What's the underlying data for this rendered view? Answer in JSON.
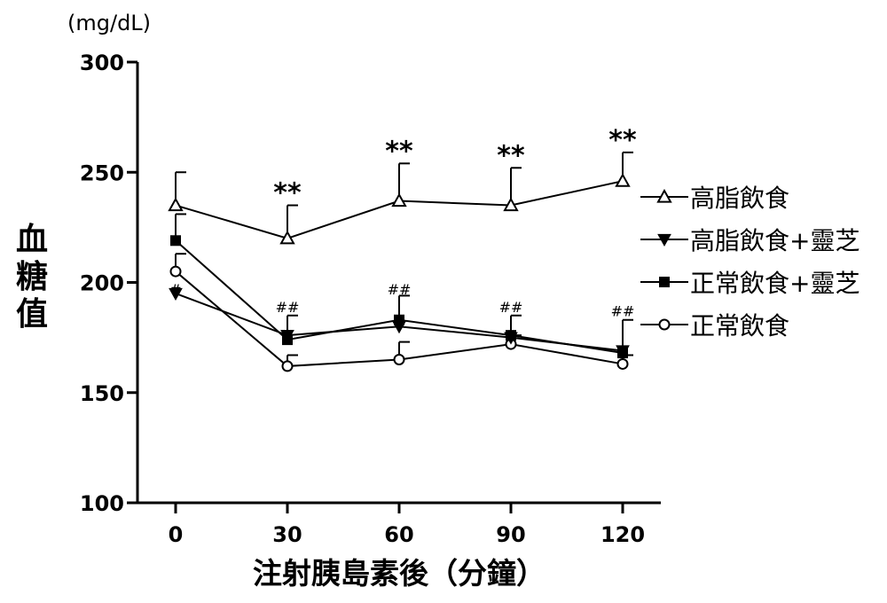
{
  "chart_data": {
    "type": "line",
    "unit": "(mg/dL)",
    "ylabel": "血糖值",
    "xlabel": "注射胰島素後（分鐘）",
    "x": [
      0,
      30,
      60,
      90,
      120
    ],
    "x_ticks": [
      "0",
      "30",
      "60",
      "90",
      "120"
    ],
    "ylim": [
      100,
      300
    ],
    "y_ticks": [
      "100",
      "150",
      "200",
      "250",
      "300"
    ],
    "legend_position": "right",
    "series": [
      {
        "name": "高脂飲食",
        "marker": "triangle-up-open",
        "values": [
          235,
          220,
          237,
          235,
          246
        ],
        "errors": [
          15,
          15,
          17,
          17,
          13
        ]
      },
      {
        "name": "高脂飲食+靈芝",
        "marker": "triangle-down-filled",
        "values": [
          195,
          176,
          180,
          175,
          169
        ],
        "errors": [
          0,
          0,
          0,
          0,
          0
        ]
      },
      {
        "name": "正常飲食+靈芝",
        "marker": "square-filled",
        "values": [
          219,
          174,
          183,
          176,
          168
        ],
        "errors": [
          12,
          11,
          11,
          9,
          15
        ]
      },
      {
        "name": "正常飲食",
        "marker": "circle-open",
        "values": [
          205,
          162,
          165,
          172,
          163
        ],
        "errors": [
          8,
          5,
          8,
          4,
          4
        ]
      }
    ],
    "annotations": [
      {
        "x": 30,
        "y": 235,
        "text": "**"
      },
      {
        "x": 60,
        "y": 254,
        "text": "**"
      },
      {
        "x": 90,
        "y": 252,
        "text": "**"
      },
      {
        "x": 120,
        "y": 259,
        "text": "**"
      },
      {
        "x": 0,
        "y": 193,
        "text": "#"
      },
      {
        "x": 30,
        "y": 185,
        "text": "##"
      },
      {
        "x": 60,
        "y": 193,
        "text": "##"
      },
      {
        "x": 90,
        "y": 185,
        "text": "##"
      },
      {
        "x": 120,
        "y": 183,
        "text": "##"
      }
    ]
  }
}
